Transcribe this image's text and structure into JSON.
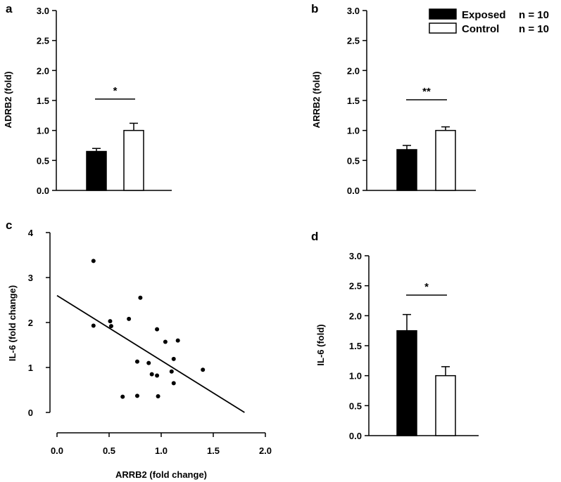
{
  "legend": {
    "entries": [
      {
        "label": "Exposed",
        "n": "n = 10",
        "fill": "#000000"
      },
      {
        "label": "Control",
        "n": "n = 10",
        "fill": "#ffffff"
      }
    ]
  },
  "chart_data": [
    {
      "panel": "a",
      "type": "bar",
      "ylabel": "ADRB2 (fold)",
      "xlabel": "",
      "ylim": [
        0,
        3.0
      ],
      "yticks": [
        "0.0",
        "0.5",
        "1.0",
        "1.5",
        "2.0",
        "2.5",
        "3.0"
      ],
      "categories": [
        "Exposed",
        "Control"
      ],
      "values": [
        0.65,
        1.0
      ],
      "errors": [
        0.05,
        0.12
      ],
      "significance": "*"
    },
    {
      "panel": "b",
      "type": "bar",
      "ylabel": "ARRB2 (fold)",
      "xlabel": "",
      "ylim": [
        0,
        3.0
      ],
      "yticks": [
        "0.0",
        "0.5",
        "1.0",
        "1.5",
        "2.0",
        "2.5",
        "3.0"
      ],
      "categories": [
        "Exposed",
        "Control"
      ],
      "values": [
        0.68,
        1.0
      ],
      "errors": [
        0.07,
        0.06
      ],
      "significance": "**"
    },
    {
      "panel": "c",
      "type": "scatter",
      "xlabel": "ARRB2 (fold change)",
      "ylabel": "IL-6 (fold change)",
      "xlim": [
        0,
        2.0
      ],
      "ylim": [
        0,
        4
      ],
      "xticks": [
        "0.0",
        "0.5",
        "1.0",
        "1.5",
        "2.0"
      ],
      "yticks": [
        "0",
        "1",
        "2",
        "3",
        "4"
      ],
      "points": [
        {
          "x": 0.35,
          "y": 3.37
        },
        {
          "x": 0.35,
          "y": 1.93
        },
        {
          "x": 0.51,
          "y": 2.03
        },
        {
          "x": 0.52,
          "y": 1.92
        },
        {
          "x": 0.63,
          "y": 0.35
        },
        {
          "x": 0.69,
          "y": 2.08
        },
        {
          "x": 0.77,
          "y": 1.13
        },
        {
          "x": 0.77,
          "y": 0.37
        },
        {
          "x": 0.8,
          "y": 2.55
        },
        {
          "x": 0.88,
          "y": 1.1
        },
        {
          "x": 0.91,
          "y": 0.85
        },
        {
          "x": 0.96,
          "y": 1.85
        },
        {
          "x": 0.96,
          "y": 0.82
        },
        {
          "x": 0.97,
          "y": 0.36
        },
        {
          "x": 1.04,
          "y": 1.57
        },
        {
          "x": 1.1,
          "y": 0.91
        },
        {
          "x": 1.12,
          "y": 1.19
        },
        {
          "x": 1.12,
          "y": 0.65
        },
        {
          "x": 1.16,
          "y": 1.6
        },
        {
          "x": 1.4,
          "y": 0.95
        }
      ],
      "regression": {
        "x": [
          0,
          1.8
        ],
        "y": [
          2.6,
          0.0
        ]
      }
    },
    {
      "panel": "d",
      "type": "bar",
      "ylabel": "IL-6 (fold)",
      "xlabel": "",
      "ylim": [
        0,
        3.0
      ],
      "yticks": [
        "0.0",
        "0.5",
        "1.0",
        "1.5",
        "2.0",
        "2.5",
        "3.0"
      ],
      "categories": [
        "Exposed",
        "Control"
      ],
      "values": [
        1.75,
        1.0
      ],
      "errors": [
        0.27,
        0.15
      ],
      "significance": "*"
    }
  ]
}
